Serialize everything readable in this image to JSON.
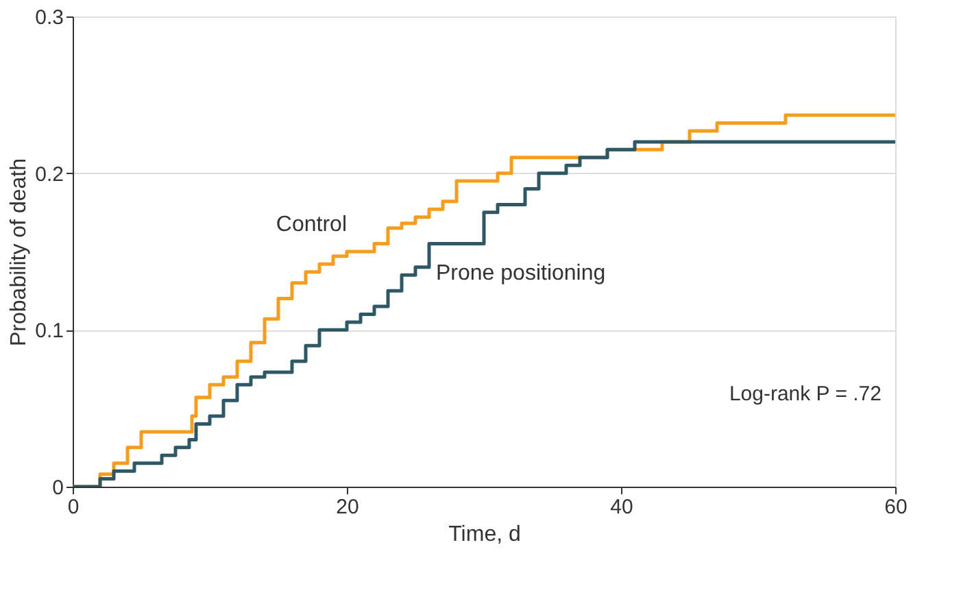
{
  "chart_data": {
    "type": "step",
    "xlabel": "Time, d",
    "ylabel": "Probability of death",
    "xlim": [
      0,
      60
    ],
    "xticks": [
      0,
      20,
      40,
      60
    ],
    "ylim": [
      0,
      0.3
    ],
    "yticks": [
      0,
      0.1,
      0.2,
      0.3
    ],
    "grid": "y",
    "legend": false,
    "line_style": "solid",
    "marker": "none",
    "series": [
      {
        "name": "Control",
        "color": "#f59d1e",
        "x": [
          0,
          2,
          3,
          4,
          5,
          8.7,
          9,
          10,
          11,
          12,
          13,
          14,
          15,
          16,
          17,
          18,
          19,
          20,
          22,
          23,
          24,
          25,
          26,
          27,
          28,
          31,
          32,
          39,
          43,
          45,
          47,
          52,
          60
        ],
        "values": [
          0,
          0.008,
          0.015,
          0.025,
          0.035,
          0.045,
          0.057,
          0.065,
          0.07,
          0.08,
          0.092,
          0.107,
          0.12,
          0.13,
          0.137,
          0.142,
          0.147,
          0.15,
          0.155,
          0.165,
          0.168,
          0.172,
          0.177,
          0.182,
          0.195,
          0.2,
          0.21,
          0.215,
          0.22,
          0.227,
          0.232,
          0.237,
          0.237
        ]
      },
      {
        "name": "Prone positioning",
        "color": "#2e5866",
        "x": [
          0,
          2,
          3,
          4.5,
          6.5,
          7.5,
          8.5,
          9,
          10,
          11,
          12,
          13,
          14,
          16,
          17,
          18,
          20,
          21,
          22,
          23,
          24,
          25,
          26,
          30,
          31,
          33,
          34,
          36,
          37,
          39,
          41,
          60
        ],
        "values": [
          0,
          0.005,
          0.01,
          0.015,
          0.02,
          0.025,
          0.03,
          0.04,
          0.045,
          0.055,
          0.065,
          0.07,
          0.073,
          0.08,
          0.09,
          0.1,
          0.105,
          0.11,
          0.115,
          0.125,
          0.135,
          0.14,
          0.155,
          0.175,
          0.18,
          0.19,
          0.2,
          0.205,
          0.21,
          0.215,
          0.22,
          0.22
        ]
      }
    ],
    "annotations": [
      "Log-rank P = .72"
    ]
  }
}
